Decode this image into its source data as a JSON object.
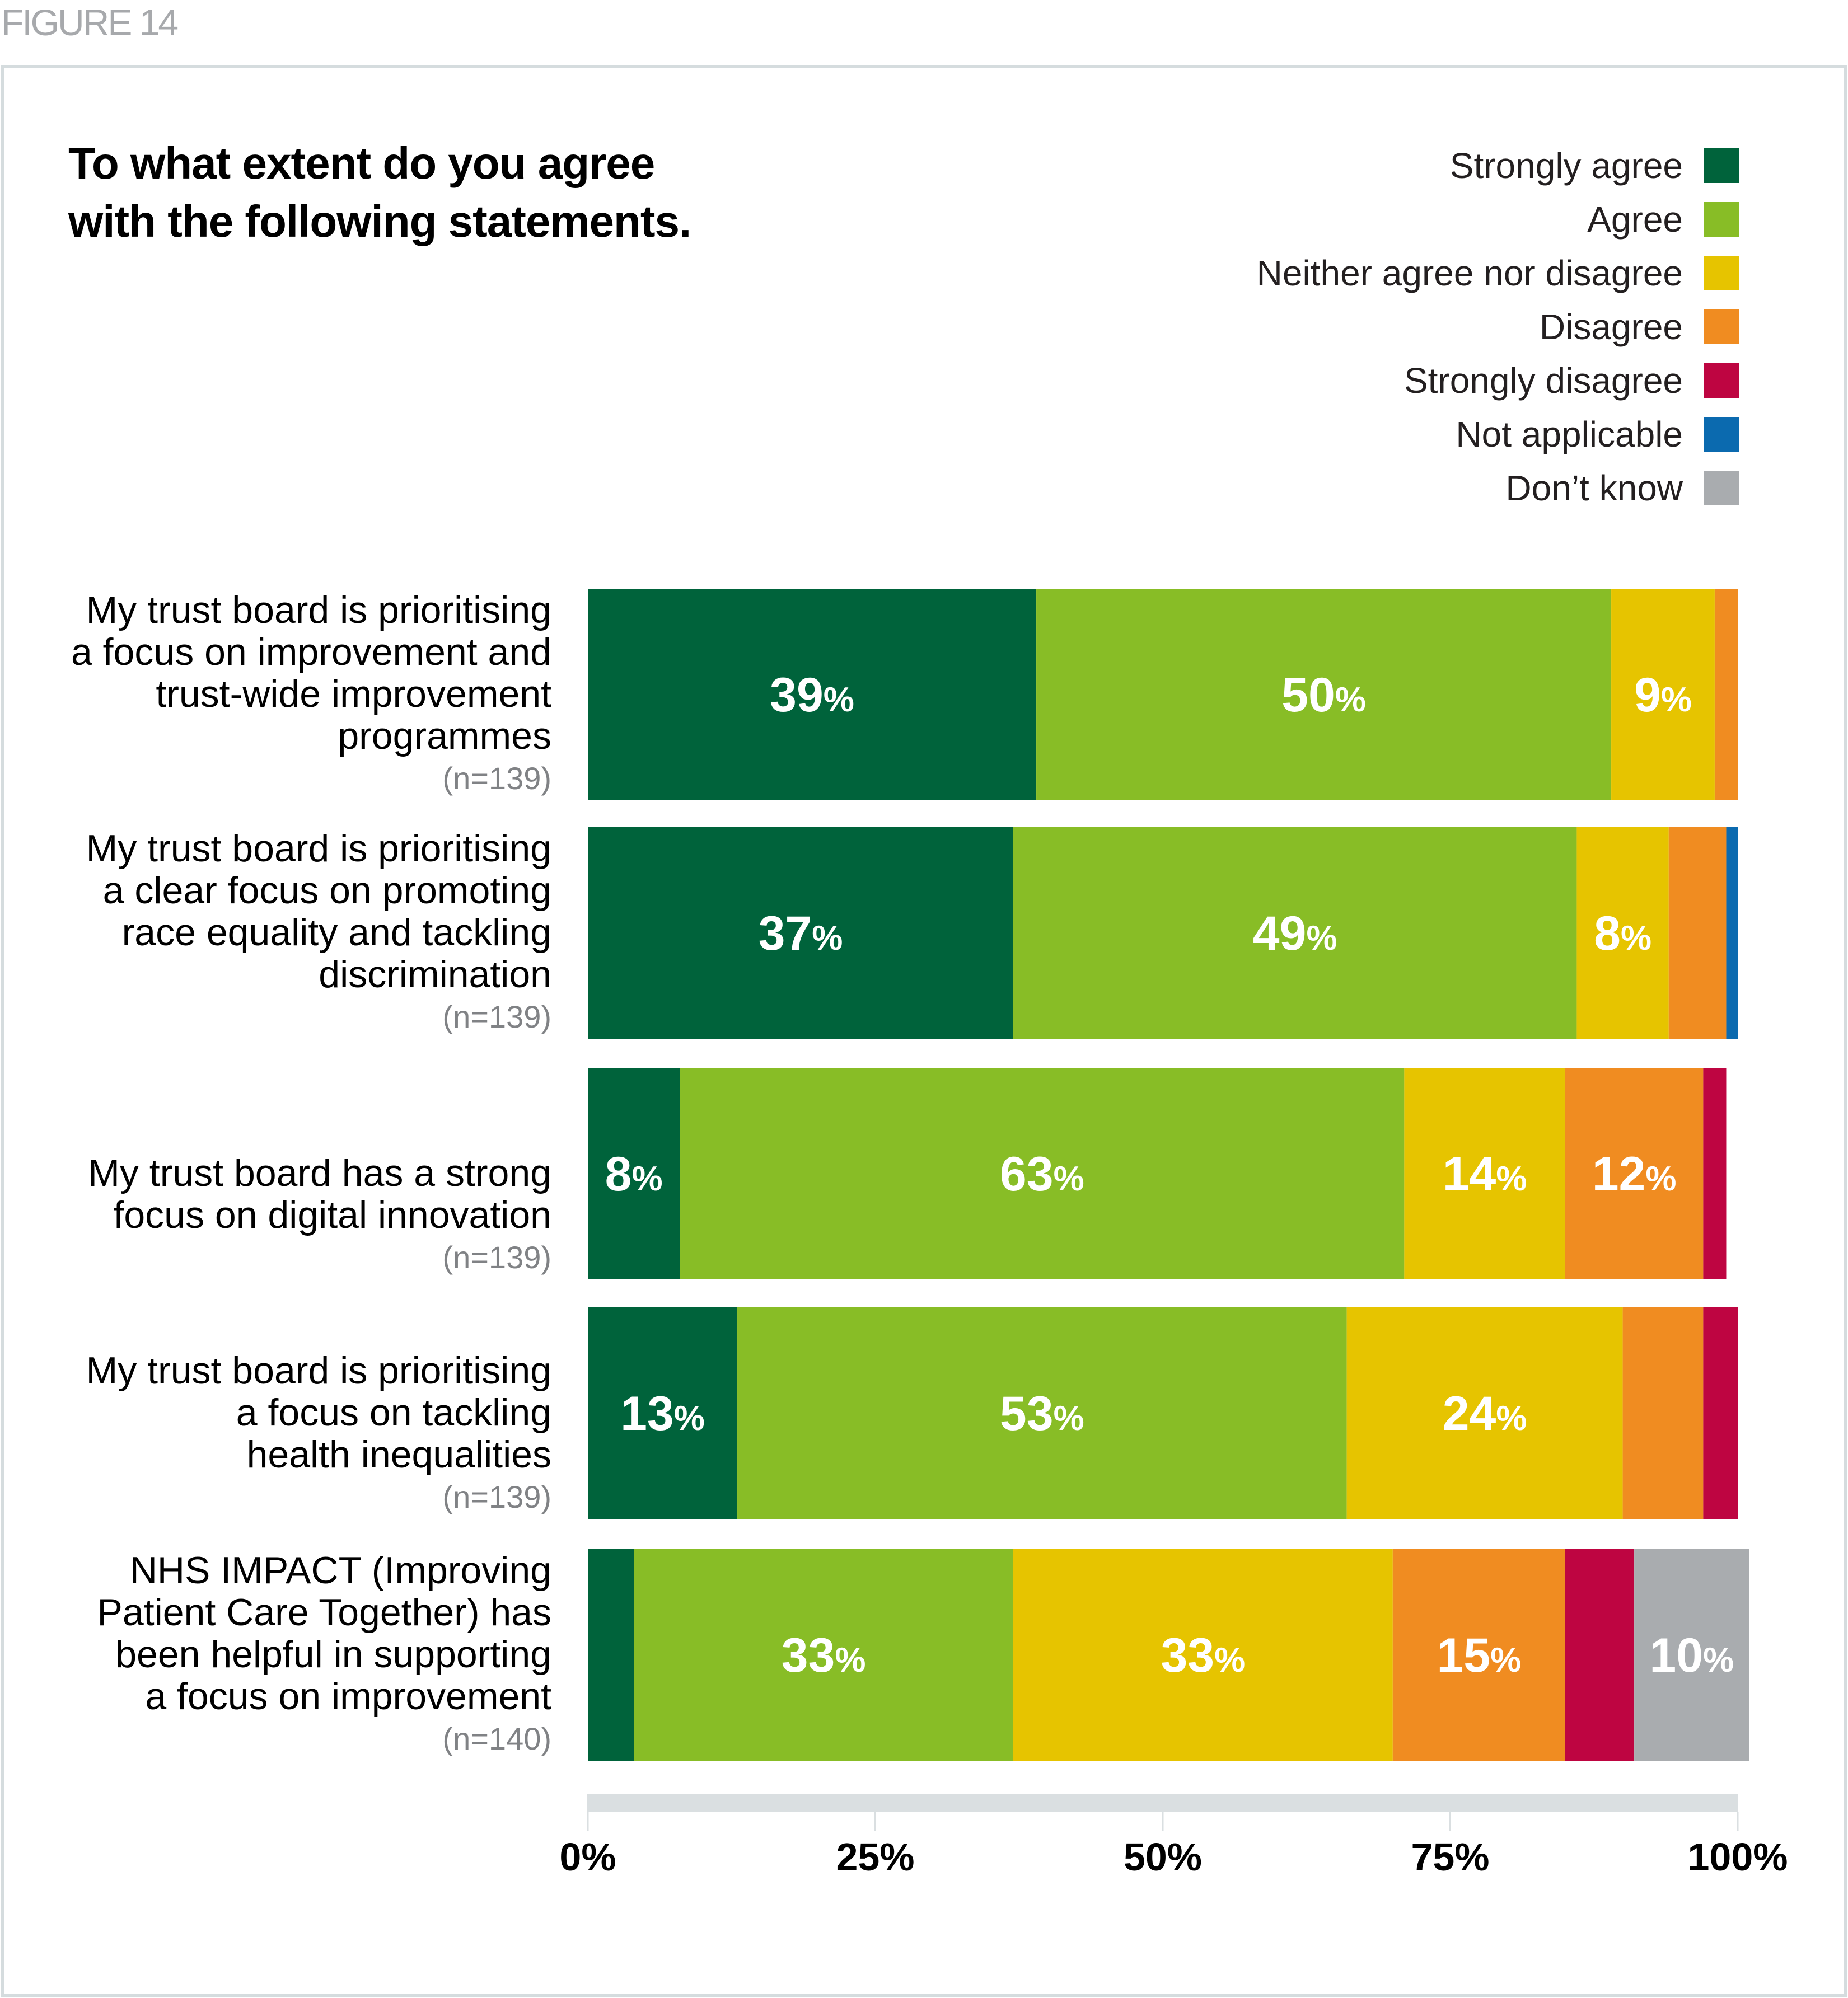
{
  "figure_label": "FIGURE 14",
  "title_lines": [
    "To what extent do you agree",
    "with the following statements."
  ],
  "legend": [
    {
      "label": "Strongly agree",
      "color": "#00633b",
      "icon": "square-swatch"
    },
    {
      "label": "Agree",
      "color": "#88bd26",
      "icon": "square-swatch"
    },
    {
      "label": "Neither agree nor disagree",
      "color": "#e6c400",
      "icon": "square-swatch"
    },
    {
      "label": "Disagree",
      "color": "#f08c21",
      "icon": "square-swatch"
    },
    {
      "label": "Strongly disagree",
      "color": "#be0541",
      "icon": "square-swatch"
    },
    {
      "label": "Not applicable",
      "color": "#0b6aaf",
      "icon": "square-swatch"
    },
    {
      "label": "Don’t know",
      "color": "#a9acaf",
      "icon": "square-swatch"
    }
  ],
  "rows": [
    {
      "lines": [
        "My trust board is prioritising",
        "a focus on improvement and",
        "trust-wide improvement",
        "programmes"
      ],
      "n": "(n=139)"
    },
    {
      "lines": [
        "My trust board is prioritising",
        "a clear focus on promoting",
        "race equality and tackling",
        "discrimination"
      ],
      "n": "(n=139)"
    },
    {
      "lines": [
        "My trust board has a strong",
        "focus on digital innovation"
      ],
      "n": "(n=139)"
    },
    {
      "lines": [
        "My trust board is prioritising",
        "a focus on tackling",
        "health inequalities"
      ],
      "n": "(n=139)"
    },
    {
      "lines": [
        "NHS IMPACT (Improving",
        "Patient Care Together) has",
        "been helpful in supporting",
        "a focus on improvement"
      ],
      "n": "(n=140)"
    }
  ],
  "chart_data": {
    "type": "bar",
    "orientation": "horizontal",
    "stacked": true,
    "title": "To what extent do you agree with the following statements.",
    "xlabel": "",
    "ylabel": "",
    "xlim": [
      0,
      100
    ],
    "x_ticks": [
      "0%",
      "25%",
      "50%",
      "75%",
      "100%"
    ],
    "x_tick_values": [
      0,
      25,
      50,
      75,
      100
    ],
    "legend_position": "top-right",
    "grid": false,
    "categories": [
      "My trust board is prioritising a focus on improvement and trust-wide improvement programmes (n=139)",
      "My trust board is prioritising a clear focus on promoting race equality and tackling discrimination (n=139)",
      "My trust board has a strong focus on digital innovation (n=139)",
      "My trust board is prioritising a focus on tackling health inequalities (n=139)",
      "NHS IMPACT (Improving Patient Care Together) has been helpful in supporting a focus on improvement (n=140)"
    ],
    "series": [
      {
        "name": "Strongly agree",
        "color": "#00633b",
        "values": [
          39,
          37,
          8,
          13,
          4
        ],
        "labels": [
          "39%",
          "37%",
          "8%",
          "13%",
          ""
        ]
      },
      {
        "name": "Agree",
        "color": "#88bd26",
        "values": [
          50,
          49,
          63,
          53,
          33
        ],
        "labels": [
          "50%",
          "49%",
          "63%",
          "53%",
          "33%"
        ]
      },
      {
        "name": "Neither agree nor disagree",
        "color": "#e6c400",
        "values": [
          9,
          8,
          14,
          24,
          33
        ],
        "labels": [
          "9%",
          "8%",
          "14%",
          "24%",
          "33%"
        ]
      },
      {
        "name": "Disagree",
        "color": "#f08c21",
        "values": [
          2,
          5,
          12,
          7,
          15
        ],
        "labels": [
          "",
          "",
          "12%",
          "",
          "15%"
        ]
      },
      {
        "name": "Strongly disagree",
        "color": "#be0541",
        "values": [
          0,
          0,
          2,
          3,
          6
        ],
        "labels": [
          "",
          "",
          "",
          "",
          ""
        ]
      },
      {
        "name": "Not applicable",
        "color": "#0b6aaf",
        "values": [
          0,
          1,
          0,
          0,
          0
        ],
        "labels": [
          "",
          "",
          "",
          "",
          ""
        ]
      },
      {
        "name": "Don’t know",
        "color": "#a9acaf",
        "values": [
          0,
          0,
          0,
          0,
          10
        ],
        "labels": [
          "",
          "",
          "",
          "",
          "10%"
        ]
      }
    ]
  }
}
